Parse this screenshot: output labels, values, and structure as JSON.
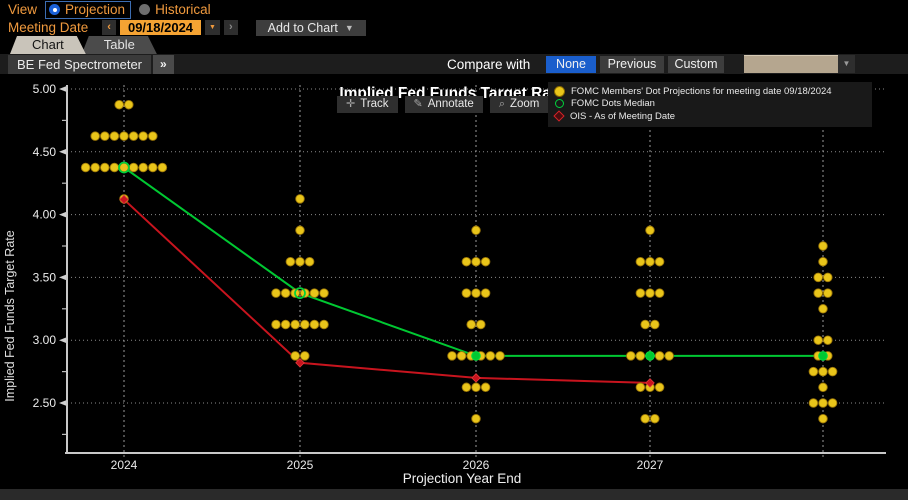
{
  "colors": {
    "accent_orange": "#f09a3e",
    "date_bg": "#f5a333",
    "radio_blue": "#1b62d9",
    "selected_blue": "#1a5ecc",
    "dot_yellow": "#e9c51a",
    "dot_stroke": "#9c7708",
    "median_green": "#00c832",
    "ois_red": "#c8141e"
  },
  "view_bar": {
    "label": "View",
    "options": [
      {
        "label": "Projection",
        "selected": true
      },
      {
        "label": "Historical",
        "selected": false
      }
    ]
  },
  "date_bar": {
    "label": "Meeting Date",
    "prev": "‹",
    "value": "09/18/2024",
    "caret": "▼",
    "next": "›",
    "add_button": "Add to Chart",
    "add_caret": "▼"
  },
  "tabs": [
    {
      "label": "Chart",
      "active": true
    },
    {
      "label": "Table",
      "active": false
    }
  ],
  "subbar": {
    "spectrometer": "BE Fed Spectrometer",
    "expand": "»",
    "compare_label": "Compare with",
    "options": [
      "None",
      "Previous",
      "Custom"
    ],
    "selected": "None"
  },
  "chart_toolbar": {
    "track": "Track",
    "track_icon": "✛",
    "annotate": "Annotate",
    "annotate_icon": "✎",
    "zoom": "Zoom",
    "zoom_icon": "⌕"
  },
  "legend": [
    {
      "marker": "yellow-dot",
      "label": "FOMC Members' Dot Projections for meeting date 09/18/2024",
      "color": "#e9c51a"
    },
    {
      "marker": "green-circle",
      "label": "FOMC Dots Median",
      "color": "#00c832"
    },
    {
      "marker": "red-diamond",
      "label": "OIS - As of Meeting Date",
      "color": "#c8141e"
    }
  ],
  "chart_data": {
    "type": "scatter",
    "title": "Implied Fed Funds Target Rate",
    "xlabel": "Projection Year End",
    "ylabel": "Implied Fed Funds Target Rate",
    "ylim": [
      2.25,
      5.05
    ],
    "yticks_major": [
      2.5,
      3.0,
      3.5,
      4.0,
      4.5,
      5.0
    ],
    "ytick_minor_step": 0.25,
    "grid": true,
    "legend_position": "top-right",
    "columns": [
      {
        "label": "2024",
        "dots": [
          {
            "rate": 4.875,
            "count": 2
          },
          {
            "rate": 4.625,
            "count": 7
          },
          {
            "rate": 4.375,
            "count": 9
          },
          {
            "rate": 4.125,
            "count": 1
          }
        ]
      },
      {
        "label": "2025",
        "dots": [
          {
            "rate": 4.125,
            "count": 1
          },
          {
            "rate": 3.875,
            "count": 1
          },
          {
            "rate": 3.625,
            "count": 3
          },
          {
            "rate": 3.375,
            "count": 6
          },
          {
            "rate": 3.125,
            "count": 6
          },
          {
            "rate": 2.875,
            "count": 2
          }
        ]
      },
      {
        "label": "2026",
        "dots": [
          {
            "rate": 3.875,
            "count": 1
          },
          {
            "rate": 3.625,
            "count": 3
          },
          {
            "rate": 3.375,
            "count": 3
          },
          {
            "rate": 3.125,
            "count": 2
          },
          {
            "rate": 2.875,
            "count": 6
          },
          {
            "rate": 2.625,
            "count": 3
          },
          {
            "rate": 2.375,
            "count": 1
          }
        ]
      },
      {
        "label": "2027",
        "dots": [
          {
            "rate": 3.875,
            "count": 1
          },
          {
            "rate": 3.625,
            "count": 3
          },
          {
            "rate": 3.375,
            "count": 3
          },
          {
            "rate": 3.125,
            "count": 2
          },
          {
            "rate": 2.875,
            "count": 5
          },
          {
            "rate": 2.625,
            "count": 3
          },
          {
            "rate": 2.375,
            "count": 2
          }
        ]
      },
      {
        "label": "",
        "dots": [
          {
            "rate": 3.75,
            "count": 1
          },
          {
            "rate": 3.625,
            "count": 1
          },
          {
            "rate": 3.5,
            "count": 2
          },
          {
            "rate": 3.375,
            "count": 2
          },
          {
            "rate": 3.25,
            "count": 1
          },
          {
            "rate": 3.0,
            "count": 2
          },
          {
            "rate": 2.875,
            "count": 2
          },
          {
            "rate": 2.75,
            "count": 3
          },
          {
            "rate": 2.625,
            "count": 1
          },
          {
            "rate": 2.5,
            "count": 3
          },
          {
            "rate": 2.375,
            "count": 1
          }
        ]
      }
    ],
    "series": [
      {
        "name": "FOMC Dots Median",
        "color": "#00c832",
        "marker": "circle",
        "values": [
          4.375,
          3.375,
          2.875,
          2.875,
          2.875
        ]
      },
      {
        "name": "OIS - As of Meeting Date",
        "color": "#c8141e",
        "marker": "diamond",
        "values": [
          4.12,
          2.82,
          2.7,
          2.66,
          null
        ]
      }
    ]
  }
}
